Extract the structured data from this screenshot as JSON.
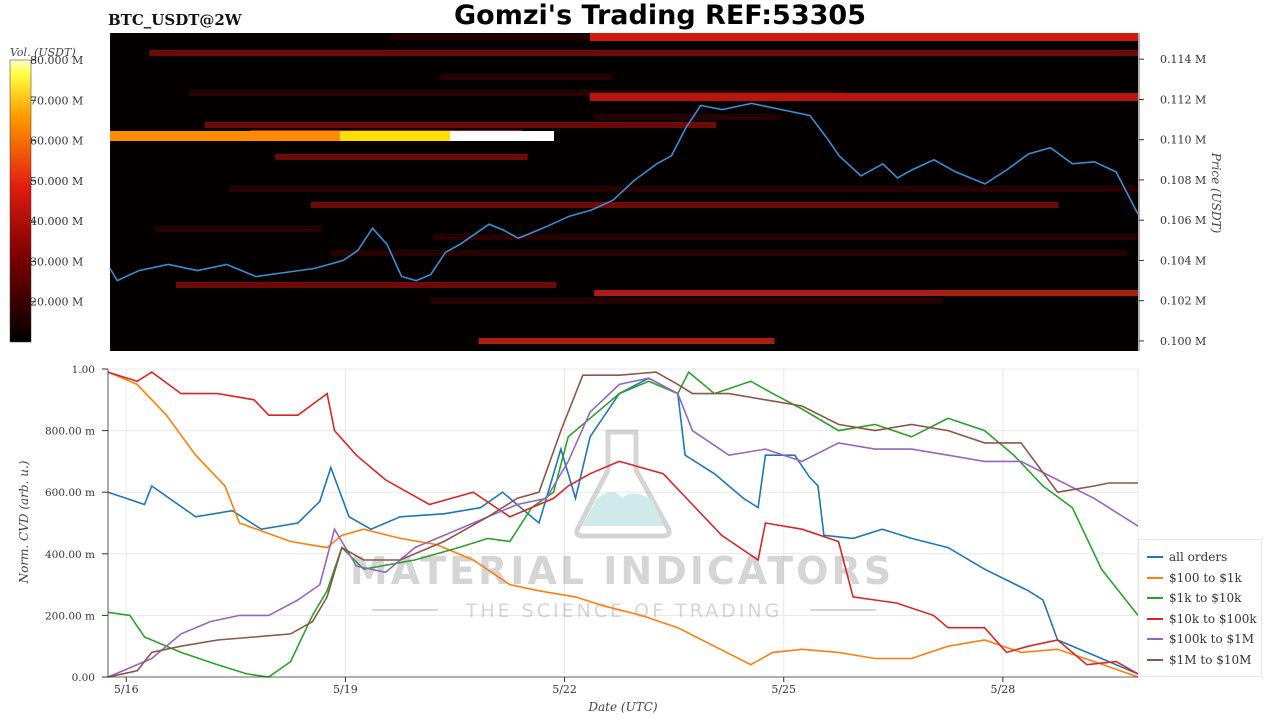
{
  "header": {
    "symbol": "BTC_USDT@2W",
    "title": "Gomzi's Trading REF:53305"
  },
  "colors": {
    "price_line": "#3a8fd0",
    "heatmap_bg": "#050000",
    "heat_low": "#2a0000",
    "heat_mid": "#c0201a",
    "heat_high": "#ff8c00",
    "heat_max": "#ffffff",
    "grid": "#e8e8e8"
  },
  "watermark": {
    "brand": "MATERIAL INDICATORS",
    "tagline": "THE SCIENCE OF TRADING"
  },
  "chart_data": [
    {
      "type": "heatmap",
      "colorbar_label": "Vol. (USDT)",
      "colorbar_ticks": [
        "80.000 M",
        "70.000 M",
        "60.000 M",
        "50.000 M",
        "40.000 M",
        "30.000 M",
        "20.000 M"
      ],
      "colorbar_range": [
        10,
        80
      ],
      "ylabel": "Price (USDT)",
      "yticks": [
        "0.114 M",
        "0.112 M",
        "0.110 M",
        "0.108 M",
        "0.106 M",
        "0.104 M",
        "0.102 M",
        "0.100 M"
      ],
      "ylim": [
        99500,
        115300
      ],
      "xlim_days": [
        0,
        14.1
      ],
      "price_series": [
        [
          0,
          103600
        ],
        [
          0.1,
          103000
        ],
        [
          0.4,
          103500
        ],
        [
          0.8,
          103800
        ],
        [
          1.2,
          103500
        ],
        [
          1.6,
          103800
        ],
        [
          2.0,
          103200
        ],
        [
          2.4,
          103400
        ],
        [
          2.8,
          103600
        ],
        [
          3.0,
          103800
        ],
        [
          3.2,
          104000
        ],
        [
          3.4,
          104500
        ],
        [
          3.6,
          105600
        ],
        [
          3.8,
          104800
        ],
        [
          4.0,
          103200
        ],
        [
          4.2,
          103000
        ],
        [
          4.4,
          103300
        ],
        [
          4.6,
          104400
        ],
        [
          4.8,
          104800
        ],
        [
          5.0,
          105300
        ],
        [
          5.2,
          105800
        ],
        [
          5.4,
          105500
        ],
        [
          5.6,
          105100
        ],
        [
          5.8,
          105400
        ],
        [
          6.0,
          105700
        ],
        [
          6.3,
          106200
        ],
        [
          6.6,
          106500
        ],
        [
          6.9,
          107000
        ],
        [
          7.2,
          108000
        ],
        [
          7.5,
          108800
        ],
        [
          7.7,
          109200
        ],
        [
          7.9,
          110600
        ],
        [
          8.1,
          111700
        ],
        [
          8.4,
          111500
        ],
        [
          8.8,
          111800
        ],
        [
          9.2,
          111500
        ],
        [
          9.6,
          111200
        ],
        [
          9.85,
          110000
        ],
        [
          10.0,
          109200
        ],
        [
          10.3,
          108200
        ],
        [
          10.6,
          108800
        ],
        [
          10.8,
          108100
        ],
        [
          11.0,
          108500
        ],
        [
          11.3,
          109000
        ],
        [
          11.6,
          108400
        ],
        [
          12.0,
          107800
        ],
        [
          12.3,
          108500
        ],
        [
          12.6,
          109300
        ],
        [
          12.9,
          109600
        ],
        [
          13.2,
          108800
        ],
        [
          13.5,
          108900
        ],
        [
          13.8,
          108400
        ],
        [
          14.1,
          106300
        ]
      ]
    },
    {
      "type": "line",
      "xlabel": "Date (UTC)",
      "ylabel": "Norm. CVD (arb. u.)",
      "xticks": [
        "5/16",
        "5/19",
        "5/22",
        "5/25",
        "5/28"
      ],
      "xtick_days": [
        0.25,
        3.25,
        6.25,
        9.25,
        12.25
      ],
      "xlim_days": [
        0,
        14.1
      ],
      "yticks": [
        "0.00",
        "200.00 m",
        "400.00 m",
        "600.00 m",
        "800.00 m",
        "1.00"
      ],
      "ylim": [
        0,
        1
      ],
      "series": [
        {
          "name": "all orders",
          "color": "#1f77b4",
          "points": [
            [
              0,
              0.6
            ],
            [
              0.5,
              0.56
            ],
            [
              0.6,
              0.62
            ],
            [
              1.2,
              0.52
            ],
            [
              1.7,
              0.54
            ],
            [
              2.1,
              0.48
            ],
            [
              2.6,
              0.5
            ],
            [
              2.9,
              0.57
            ],
            [
              3.05,
              0.68
            ],
            [
              3.3,
              0.52
            ],
            [
              3.6,
              0.48
            ],
            [
              4.0,
              0.52
            ],
            [
              4.6,
              0.53
            ],
            [
              5.1,
              0.55
            ],
            [
              5.4,
              0.6
            ],
            [
              5.9,
              0.5
            ],
            [
              6.2,
              0.74
            ],
            [
              6.4,
              0.58
            ],
            [
              6.6,
              0.78
            ],
            [
              7.0,
              0.92
            ],
            [
              7.4,
              0.97
            ],
            [
              7.8,
              0.92
            ],
            [
              7.9,
              0.72
            ],
            [
              8.3,
              0.66
            ],
            [
              8.7,
              0.58
            ],
            [
              8.9,
              0.55
            ],
            [
              9.0,
              0.72
            ],
            [
              9.4,
              0.72
            ],
            [
              9.6,
              0.65
            ],
            [
              9.72,
              0.62
            ],
            [
              9.8,
              0.46
            ],
            [
              10.2,
              0.45
            ],
            [
              10.6,
              0.48
            ],
            [
              11.0,
              0.45
            ],
            [
              11.5,
              0.42
            ],
            [
              12.0,
              0.35
            ],
            [
              12.6,
              0.28
            ],
            [
              12.8,
              0.25
            ],
            [
              13.0,
              0.12
            ],
            [
              13.5,
              0.07
            ],
            [
              13.9,
              0.03
            ],
            [
              14.1,
              0.01
            ]
          ]
        },
        {
          "name": "$100 to $1k",
          "color": "#ff7f0e",
          "points": [
            [
              0,
              0.99
            ],
            [
              0.4,
              0.95
            ],
            [
              0.8,
              0.85
            ],
            [
              1.2,
              0.72
            ],
            [
              1.6,
              0.62
            ],
            [
              1.8,
              0.5
            ],
            [
              2.5,
              0.44
            ],
            [
              3.0,
              0.42
            ],
            [
              3.2,
              0.46
            ],
            [
              3.5,
              0.48
            ],
            [
              4.0,
              0.45
            ],
            [
              4.5,
              0.43
            ],
            [
              5.0,
              0.38
            ],
            [
              5.5,
              0.3
            ],
            [
              5.9,
              0.28
            ],
            [
              6.4,
              0.26
            ],
            [
              6.8,
              0.23
            ],
            [
              7.3,
              0.2
            ],
            [
              7.8,
              0.16
            ],
            [
              8.3,
              0.1
            ],
            [
              8.8,
              0.04
            ],
            [
              9.1,
              0.08
            ],
            [
              9.5,
              0.09
            ],
            [
              10.0,
              0.08
            ],
            [
              10.5,
              0.06
            ],
            [
              11.0,
              0.06
            ],
            [
              11.5,
              0.1
            ],
            [
              12.0,
              0.12
            ],
            [
              12.5,
              0.08
            ],
            [
              13.0,
              0.09
            ],
            [
              13.5,
              0.05
            ],
            [
              14.1,
              0.0
            ]
          ]
        },
        {
          "name": "$1k to $10k",
          "color": "#2ca02c",
          "points": [
            [
              0,
              0.21
            ],
            [
              0.3,
              0.2
            ],
            [
              0.5,
              0.13
            ],
            [
              1.0,
              0.08
            ],
            [
              1.5,
              0.04
            ],
            [
              1.9,
              0.01
            ],
            [
              2.2,
              0.0
            ],
            [
              2.5,
              0.05
            ],
            [
              2.8,
              0.2
            ],
            [
              3.0,
              0.28
            ],
            [
              3.2,
              0.42
            ],
            [
              3.5,
              0.35
            ],
            [
              4.2,
              0.38
            ],
            [
              4.8,
              0.42
            ],
            [
              5.2,
              0.45
            ],
            [
              5.5,
              0.44
            ],
            [
              5.8,
              0.55
            ],
            [
              6.1,
              0.6
            ],
            [
              6.3,
              0.78
            ],
            [
              6.6,
              0.84
            ],
            [
              7.0,
              0.92
            ],
            [
              7.4,
              0.96
            ],
            [
              7.8,
              0.92
            ],
            [
              7.95,
              0.99
            ],
            [
              8.3,
              0.92
            ],
            [
              8.8,
              0.96
            ],
            [
              9.1,
              0.92
            ],
            [
              9.5,
              0.87
            ],
            [
              10.0,
              0.8
            ],
            [
              10.5,
              0.82
            ],
            [
              11.0,
              0.78
            ],
            [
              11.5,
              0.84
            ],
            [
              12.0,
              0.8
            ],
            [
              12.4,
              0.72
            ],
            [
              12.8,
              0.62
            ],
            [
              13.2,
              0.55
            ],
            [
              13.6,
              0.35
            ],
            [
              14.1,
              0.2
            ]
          ]
        },
        {
          "name": "$10k to $100k",
          "color": "#d62728",
          "points": [
            [
              0,
              0.99
            ],
            [
              0.4,
              0.96
            ],
            [
              0.6,
              0.99
            ],
            [
              1.0,
              0.92
            ],
            [
              1.5,
              0.92
            ],
            [
              2.0,
              0.9
            ],
            [
              2.2,
              0.85
            ],
            [
              2.6,
              0.85
            ],
            [
              3.0,
              0.92
            ],
            [
              3.1,
              0.8
            ],
            [
              3.4,
              0.72
            ],
            [
              3.8,
              0.64
            ],
            [
              4.4,
              0.56
            ],
            [
              5.0,
              0.6
            ],
            [
              5.5,
              0.52
            ],
            [
              5.9,
              0.56
            ],
            [
              6.1,
              0.58
            ],
            [
              6.3,
              0.62
            ],
            [
              6.6,
              0.66
            ],
            [
              7.0,
              0.7
            ],
            [
              7.6,
              0.66
            ],
            [
              8.0,
              0.56
            ],
            [
              8.4,
              0.46
            ],
            [
              8.9,
              0.38
            ],
            [
              9.0,
              0.5
            ],
            [
              9.5,
              0.48
            ],
            [
              10.0,
              0.44
            ],
            [
              10.2,
              0.26
            ],
            [
              10.8,
              0.24
            ],
            [
              11.3,
              0.2
            ],
            [
              11.5,
              0.16
            ],
            [
              12.0,
              0.16
            ],
            [
              12.3,
              0.08
            ],
            [
              12.6,
              0.1
            ],
            [
              13.0,
              0.12
            ],
            [
              13.4,
              0.04
            ],
            [
              13.8,
              0.05
            ],
            [
              14.1,
              0.01
            ]
          ]
        },
        {
          "name": "$100k to $1M",
          "color": "#9467bd",
          "points": [
            [
              0,
              0.0
            ],
            [
              0.3,
              0.03
            ],
            [
              0.6,
              0.06
            ],
            [
              1.0,
              0.14
            ],
            [
              1.4,
              0.18
            ],
            [
              1.8,
              0.2
            ],
            [
              2.2,
              0.2
            ],
            [
              2.6,
              0.25
            ],
            [
              2.9,
              0.3
            ],
            [
              3.1,
              0.48
            ],
            [
              3.4,
              0.36
            ],
            [
              3.8,
              0.34
            ],
            [
              4.2,
              0.42
            ],
            [
              4.8,
              0.48
            ],
            [
              5.2,
              0.52
            ],
            [
              5.6,
              0.56
            ],
            [
              6.0,
              0.58
            ],
            [
              6.3,
              0.7
            ],
            [
              6.6,
              0.86
            ],
            [
              7.0,
              0.95
            ],
            [
              7.4,
              0.97
            ],
            [
              7.8,
              0.92
            ],
            [
              8.0,
              0.8
            ],
            [
              8.5,
              0.72
            ],
            [
              9.0,
              0.74
            ],
            [
              9.5,
              0.7
            ],
            [
              10.0,
              0.76
            ],
            [
              10.5,
              0.74
            ],
            [
              11.0,
              0.74
            ],
            [
              11.5,
              0.72
            ],
            [
              12.0,
              0.7
            ],
            [
              12.5,
              0.7
            ],
            [
              13.0,
              0.64
            ],
            [
              13.5,
              0.58
            ],
            [
              14.1,
              0.49
            ]
          ]
        },
        {
          "name": "$1M to $10M",
          "color": "#8c564b",
          "points": [
            [
              0,
              0.0
            ],
            [
              0.4,
              0.02
            ],
            [
              0.6,
              0.08
            ],
            [
              1.0,
              0.1
            ],
            [
              1.5,
              0.12
            ],
            [
              2.0,
              0.13
            ],
            [
              2.5,
              0.14
            ],
            [
              2.8,
              0.18
            ],
            [
              3.0,
              0.26
            ],
            [
              3.2,
              0.42
            ],
            [
              3.5,
              0.38
            ],
            [
              4.0,
              0.38
            ],
            [
              4.6,
              0.44
            ],
            [
              5.2,
              0.52
            ],
            [
              5.6,
              0.58
            ],
            [
              5.9,
              0.6
            ],
            [
              6.2,
              0.8
            ],
            [
              6.5,
              0.98
            ],
            [
              7.0,
              0.98
            ],
            [
              7.5,
              0.99
            ],
            [
              7.8,
              0.95
            ],
            [
              8.0,
              0.92
            ],
            [
              8.5,
              0.92
            ],
            [
              9.0,
              0.9
            ],
            [
              9.5,
              0.88
            ],
            [
              10.0,
              0.82
            ],
            [
              10.5,
              0.8
            ],
            [
              11.0,
              0.82
            ],
            [
              11.5,
              0.8
            ],
            [
              12.0,
              0.76
            ],
            [
              12.5,
              0.76
            ],
            [
              13.0,
              0.6
            ],
            [
              13.5,
              0.62
            ],
            [
              13.7,
              0.63
            ],
            [
              14.1,
              0.63
            ]
          ]
        }
      ]
    }
  ]
}
